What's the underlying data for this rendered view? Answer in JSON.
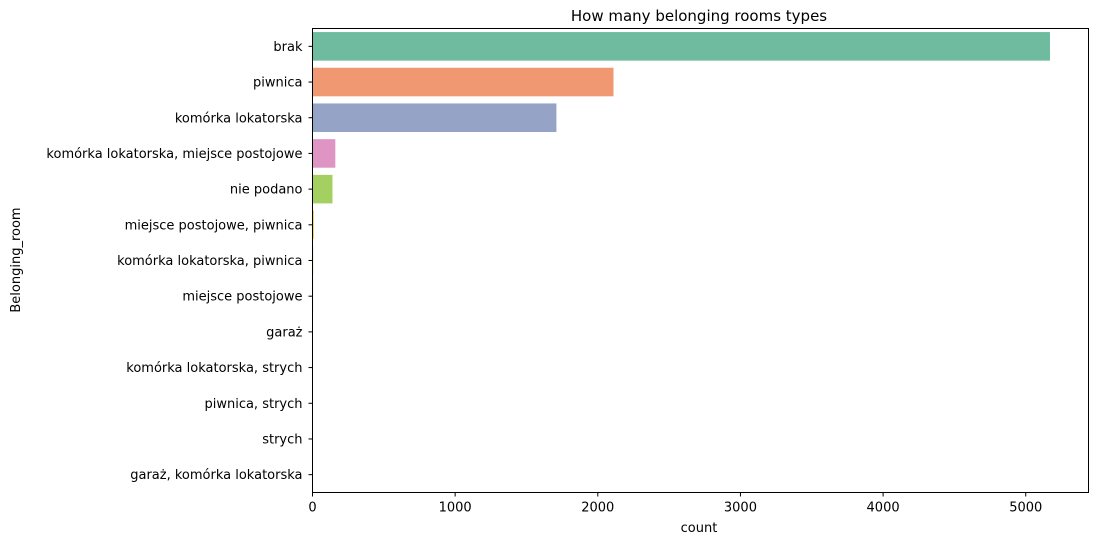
{
  "chart_data": {
    "type": "bar",
    "orientation": "horizontal",
    "title": "How many belonging rooms types",
    "xlabel": "count",
    "ylabel": "Belonging_room",
    "xlim": [
      0,
      5440
    ],
    "xticks": [
      0,
      1000,
      2000,
      3000,
      4000,
      5000
    ],
    "grid": false,
    "legend": "none",
    "categories": [
      "brak",
      "piwnica",
      "komórka lokatorska",
      "komórka lokatorska, miejsce postojowe",
      "nie podano",
      "miejsce postojowe, piwnica",
      "komórka lokatorska, piwnica",
      "miejsce postojowe",
      "garaż",
      "komórka lokatorska, strych",
      "piwnica, strych",
      "strych",
      "garaż, komórka lokatorska"
    ],
    "values": [
      5170,
      2110,
      1710,
      160,
      140,
      10,
      5,
      4,
      3,
      2,
      2,
      1,
      1
    ],
    "colors": [
      "#6fbba0",
      "#ef9872",
      "#95a3c6",
      "#df95c4",
      "#a4d062",
      "#f2d544",
      "#e2c391",
      "#b3b3b3",
      "#6fbba0",
      "#ef9872",
      "#95a3c6",
      "#df95c4",
      "#a4d062"
    ]
  }
}
